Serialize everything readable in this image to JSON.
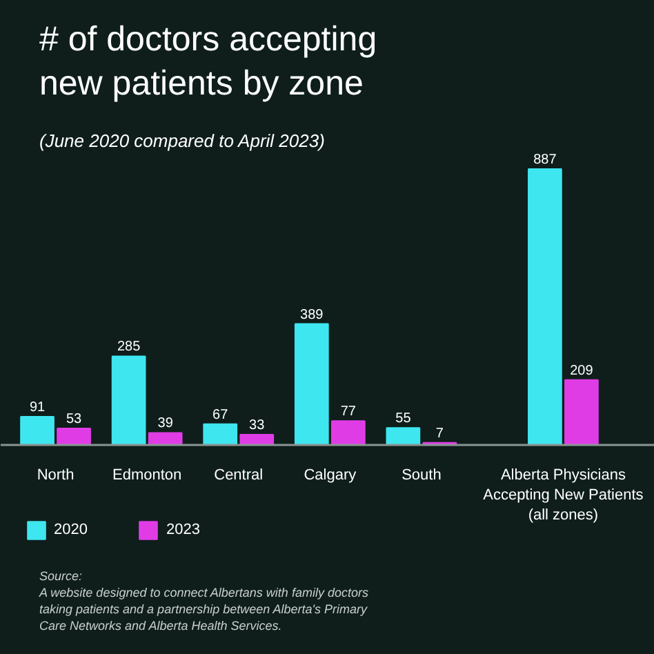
{
  "chart_data": {
    "type": "bar",
    "title": "# of doctors accepting new patients by zone",
    "subtitle": "(June 2020 compared to April 2023)",
    "categories": [
      "North",
      "Edmonton",
      "Central",
      "Calgary",
      "South",
      "Alberta Physicians Accepting New Patients (all zones)"
    ],
    "series": [
      {
        "name": "2020",
        "color": "#3ee6f0",
        "values": [
          91,
          285,
          67,
          389,
          55,
          887
        ]
      },
      {
        "name": "2023",
        "color": "#e03ce6",
        "values": [
          53,
          39,
          33,
          77,
          7,
          209
        ]
      }
    ],
    "data_labels": true,
    "legend": "bottom",
    "grid": false,
    "annotations": [
      "Source:",
      "A website designed to connect Albertans with family doctors taking patients and a partnership between Alberta's Primary Care Networks and Alberta Health Services."
    ]
  }
}
